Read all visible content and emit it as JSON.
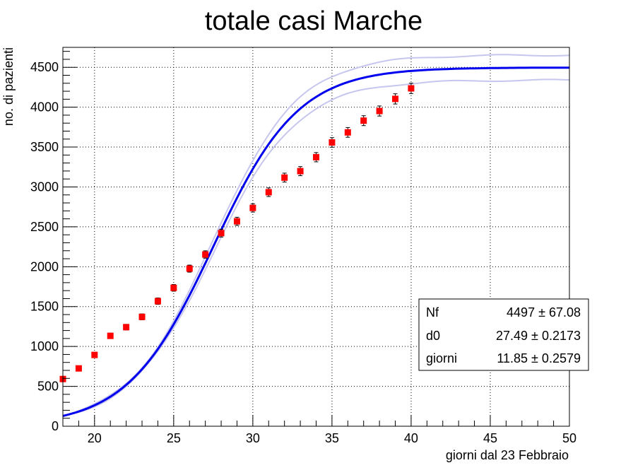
{
  "chart_data": {
    "type": "scatter",
    "title": "totale casi Marche",
    "xlabel": "giorni dal 23 Febbraio",
    "ylabel": "no. di pazienti",
    "xlim": [
      18,
      50
    ],
    "ylim": [
      0,
      4750
    ],
    "xticks": [
      20,
      25,
      30,
      35,
      40,
      45,
      50
    ],
    "yticks": [
      0,
      500,
      1000,
      1500,
      2000,
      2500,
      3000,
      3500,
      4000,
      4500
    ],
    "grid": true,
    "series": [
      {
        "kind": "points",
        "marker": "square",
        "color": "#ff0000",
        "x": [
          18,
          19,
          20,
          21,
          22,
          23,
          24,
          25,
          26,
          27,
          28,
          29,
          30,
          31,
          32,
          33,
          34,
          35,
          36,
          37,
          38,
          39,
          40
        ],
        "y": [
          592,
          725,
          894,
          1133,
          1242,
          1371,
          1568,
          1735,
          1976,
          2153,
          2421,
          2569,
          2737,
          2934,
          3117,
          3198,
          3373,
          3558,
          3684,
          3831,
          3952,
          4104,
          4236
        ],
        "err": [
          24,
          27,
          30,
          34,
          35,
          37,
          40,
          42,
          44,
          46,
          49,
          51,
          52,
          54,
          56,
          57,
          58,
          60,
          61,
          62,
          63,
          64,
          65
        ]
      },
      {
        "kind": "fit",
        "color": "#0000ee",
        "band_color": "#c6c6ee",
        "band_sigma": 0.035
      }
    ],
    "stats_box": {
      "rows": [
        {
          "name": "Nf",
          "value": "4497 ± 67.08"
        },
        {
          "name": "d0",
          "value": "27.49 ± 0.2173"
        },
        {
          "name": "giorni",
          "value": "11.85 ± 0.2579"
        }
      ]
    },
    "fit_params": {
      "Nf": 4497,
      "d0": 27.49,
      "giorni": 11.85
    }
  }
}
